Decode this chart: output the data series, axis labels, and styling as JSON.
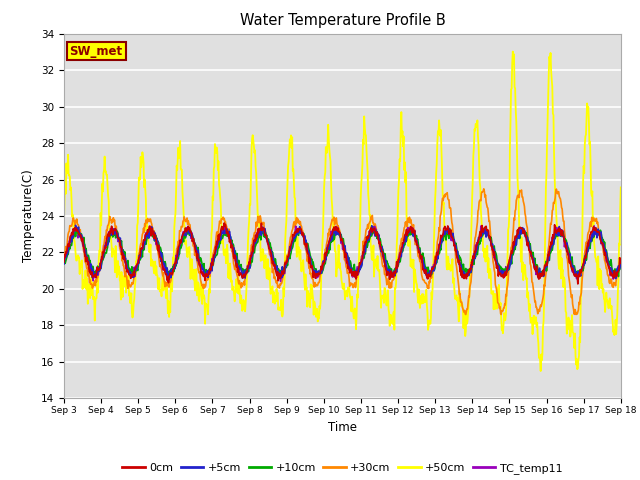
{
  "title": "Water Temperature Profile B",
  "xlabel": "Time",
  "ylabel": "Temperature(C)",
  "ylim": [
    14,
    34
  ],
  "yticks": [
    14,
    16,
    18,
    20,
    22,
    24,
    26,
    28,
    30,
    32,
    34
  ],
  "x_labels": [
    "Sep 3",
    "Sep 4",
    "Sep 5",
    "Sep 6",
    "Sep 7",
    "Sep 8",
    "Sep 9",
    "Sep 10",
    "Sep 11",
    "Sep 12",
    "Sep 13",
    "Sep 14",
    "Sep 15",
    "Sep 16",
    "Sep 17",
    "Sep 18"
  ],
  "bg_color": "#e0e0e0",
  "fig_bg": "#ffffff",
  "grid_color": "#ffffff",
  "annotation_text": "SW_met",
  "annotation_bg": "#ffff00",
  "annotation_border": "#8b0000",
  "series_colors": {
    "0cm": "#cc0000",
    "+5cm": "#2222cc",
    "+10cm": "#00aa00",
    "+30cm": "#ff8800",
    "+50cm": "#ffff00",
    "TC_temp11": "#9900bb"
  },
  "n_points": 960
}
